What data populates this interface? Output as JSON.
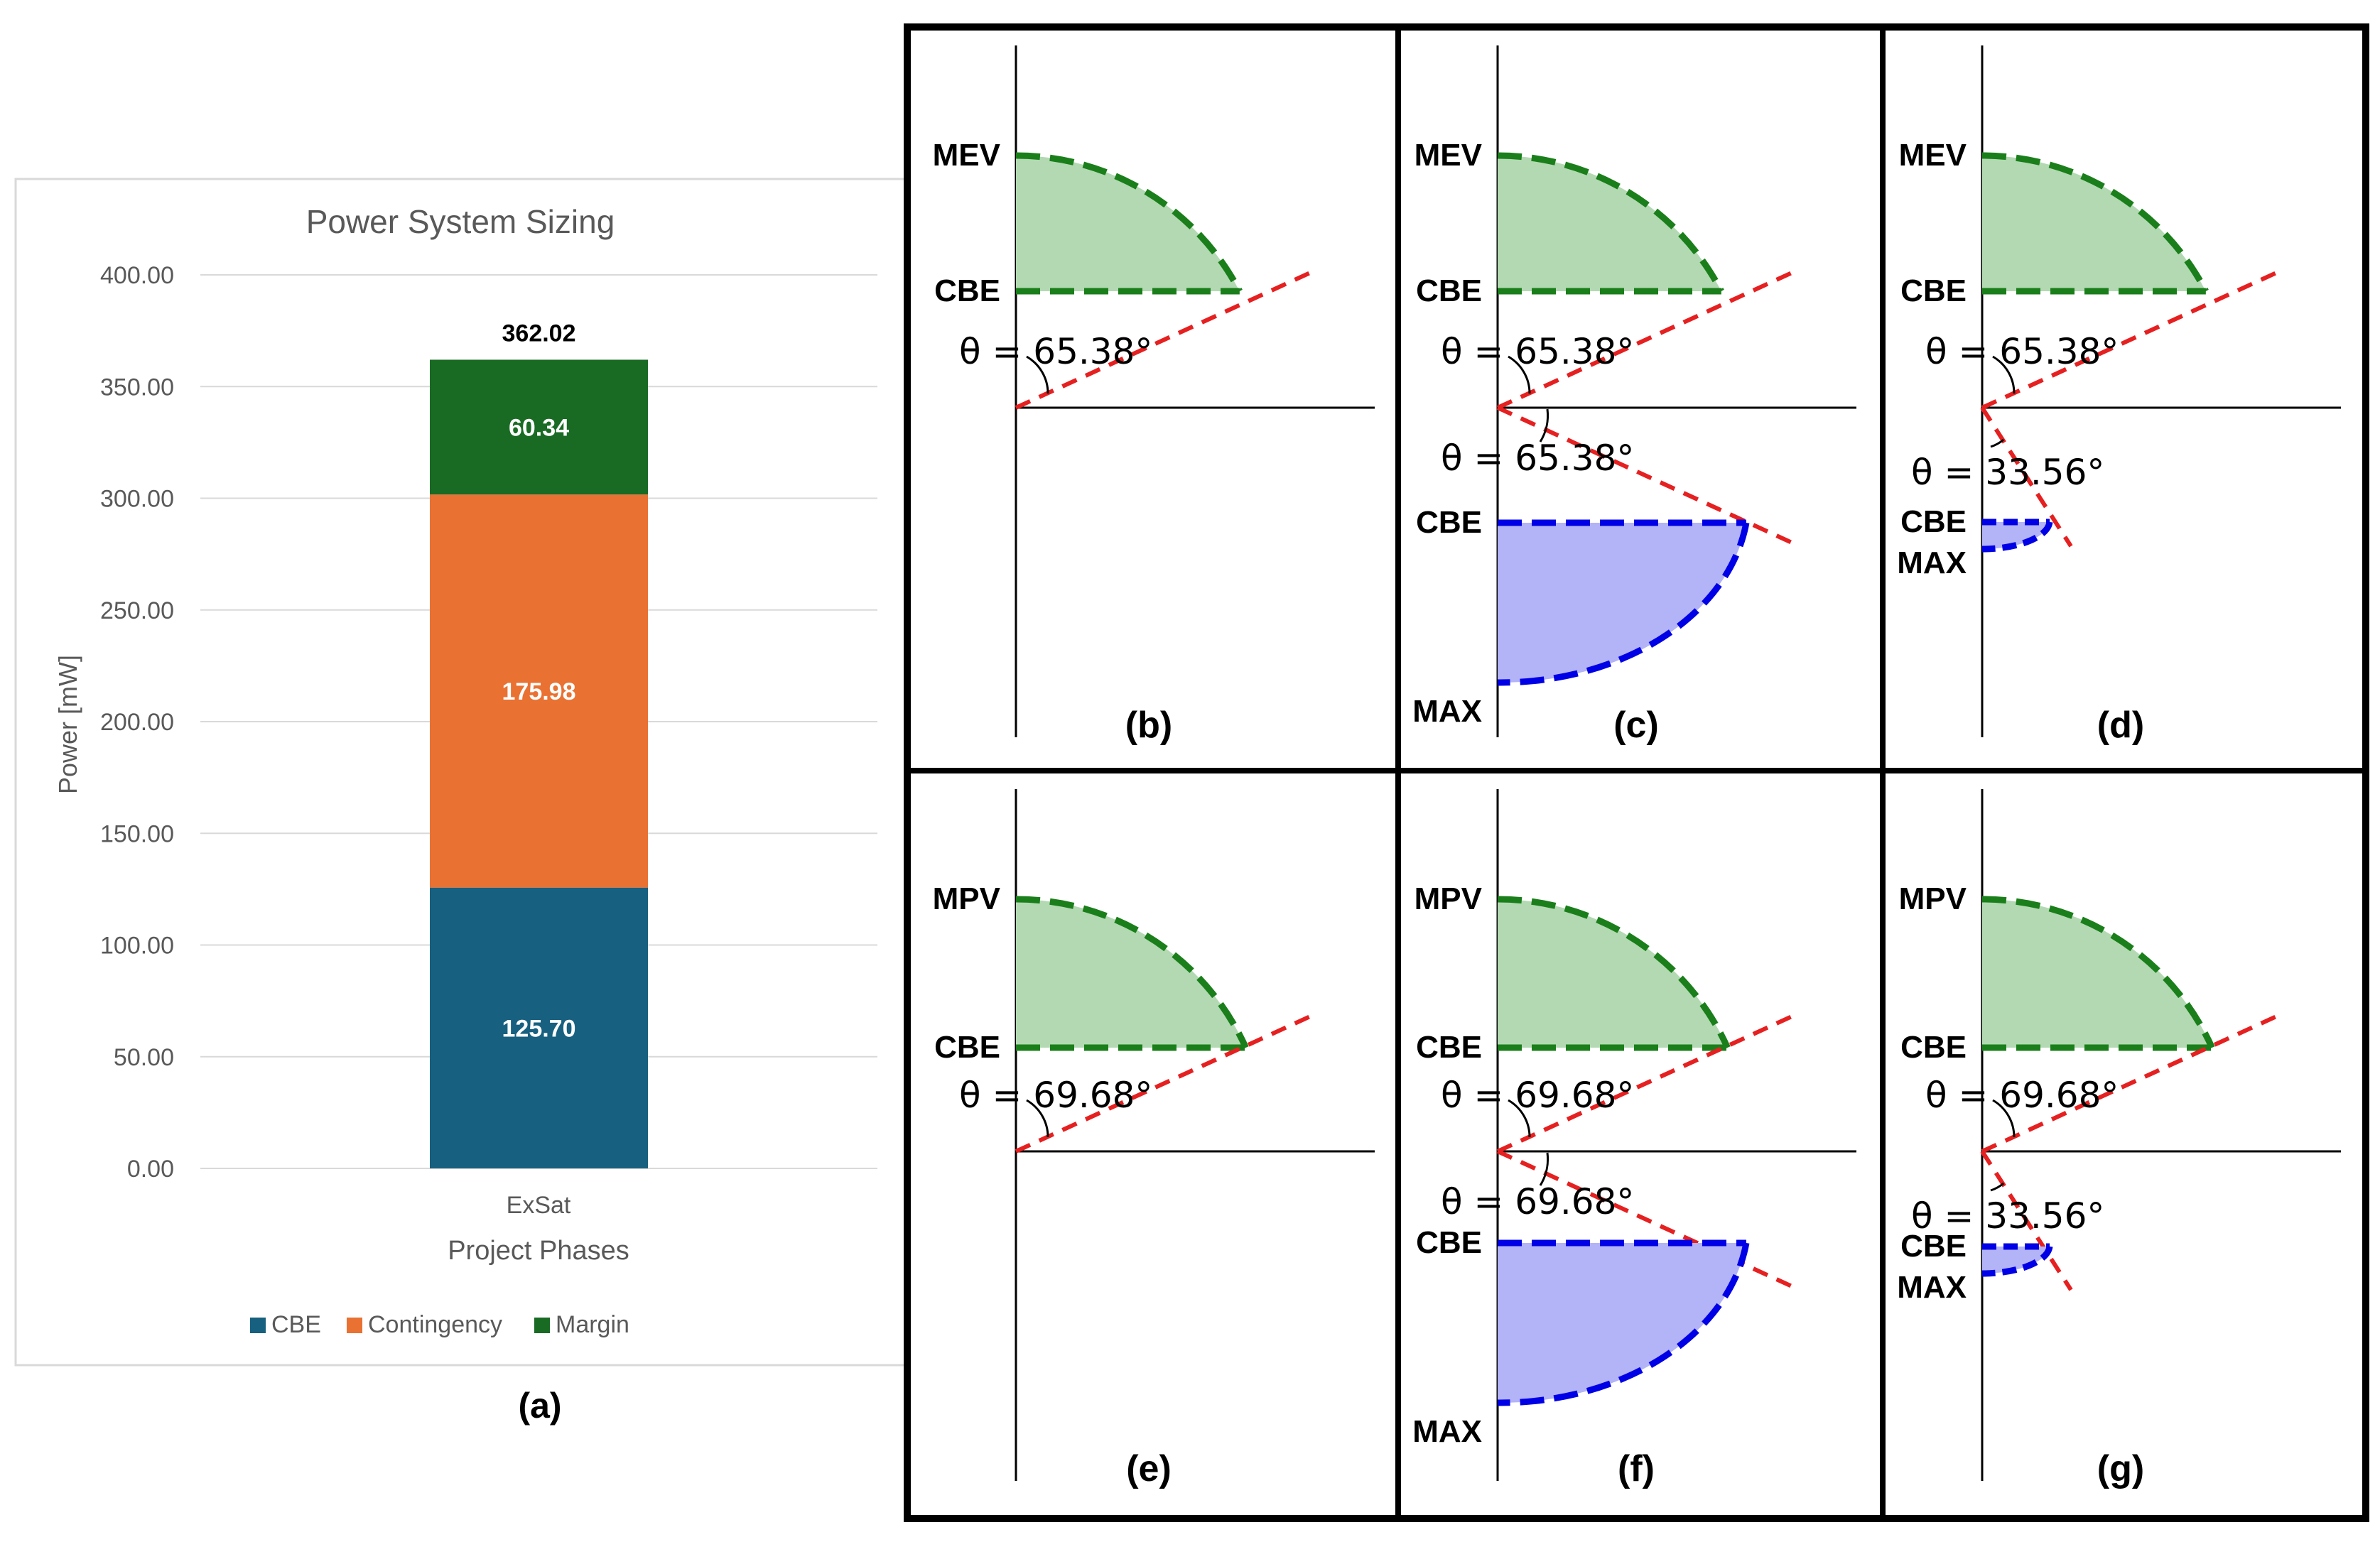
{
  "chart_data": {
    "type": "bar",
    "stacked": true,
    "title": "Power System Sizing",
    "xlabel": "Project Phases",
    "ylabel": "Power [mW]",
    "categories": [
      "ExSat"
    ],
    "ylim": [
      0,
      400
    ],
    "yticks": [
      "0.00",
      "50.00",
      "100.00",
      "150.00",
      "200.00",
      "250.00",
      "300.00",
      "350.00",
      "400.00"
    ],
    "series": [
      {
        "name": "CBE",
        "values": [
          125.7
        ],
        "label": "125.70",
        "color": "#17607f"
      },
      {
        "name": "Contingency",
        "values": [
          175.98
        ],
        "label": "175.98",
        "color": "#e97132"
      },
      {
        "name": "Margin",
        "values": [
          60.34
        ],
        "label": "60.34",
        "color": "#196b24"
      }
    ],
    "total_label": "362.02",
    "grid": true,
    "legend": "bottom"
  },
  "panel_a_label": "(a)",
  "panels": [
    {
      "id": "b",
      "label": "(b)",
      "top": "MEV",
      "mid": "CBE",
      "theta_top": "θ = 65.38°",
      "lower": null
    },
    {
      "id": "c",
      "label": "(c)",
      "top": "MEV",
      "mid": "CBE",
      "theta_top": "θ = 65.38°",
      "lower": {
        "theta": "θ = 65.38°",
        "cbe": "CBE",
        "max": "MAX"
      }
    },
    {
      "id": "d",
      "label": "(d)",
      "top": "MEV",
      "mid": "CBE",
      "theta_top": "θ = 65.38°",
      "lower": {
        "theta": "θ = 33.56°",
        "cbe": "CBE",
        "max": "MAX"
      }
    },
    {
      "id": "e",
      "label": "(e)",
      "top": "MPV",
      "mid": "CBE",
      "theta_top": "θ = 69.68°",
      "lower": null
    },
    {
      "id": "f",
      "label": "(f)",
      "top": "MPV",
      "mid": "CBE",
      "theta_top": "θ = 69.68°",
      "lower": {
        "theta": "θ = 69.68°",
        "cbe": "CBE",
        "max": "MAX"
      }
    },
    {
      "id": "g",
      "label": "(g)",
      "top": "MPV",
      "mid": "CBE",
      "theta_top": "θ = 69.68°",
      "lower": {
        "theta": "θ = 33.56°",
        "cbe": "CBE",
        "max": "MAX"
      }
    }
  ],
  "colors": {
    "green_fill": "#b3d9b3",
    "green_line": "#1a7f1a",
    "blue_fill": "#b3b3f7",
    "blue_line": "#0000e6",
    "red_line": "#e62020"
  }
}
